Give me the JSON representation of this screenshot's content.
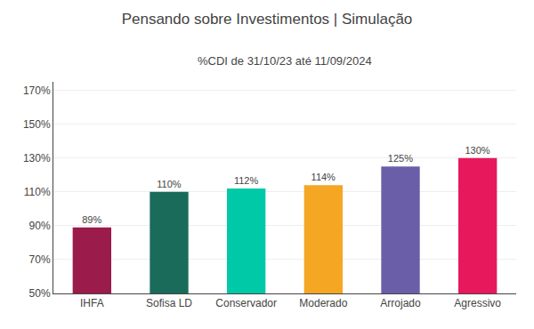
{
  "chart_data": {
    "type": "bar",
    "title": "Pensando sobre Investimentos | Simulação",
    "subtitle": "%CDI de 31/10/23 até 11/09/2024",
    "categories": [
      "IHFA",
      "Sofisa LD",
      "Conservador",
      "Moderado",
      "Arrojado",
      "Agressivo"
    ],
    "values": [
      89,
      110,
      112,
      114,
      125,
      130
    ],
    "value_labels": [
      "89%",
      "110%",
      "112%",
      "114%",
      "125%",
      "130%"
    ],
    "data_labels": true,
    "colors": [
      "#9b1b4b",
      "#1a6b5a",
      "#00c9a7",
      "#f5a623",
      "#6b5ea8",
      "#e8185d"
    ],
    "ylim": [
      50,
      175
    ],
    "yticks": [
      {
        "value": 50,
        "label": "50%"
      },
      {
        "value": 70,
        "label": "70%"
      },
      {
        "value": 90,
        "label": "90%"
      },
      {
        "value": 110,
        "label": "110%"
      },
      {
        "value": 130,
        "label": "130%"
      },
      {
        "value": 150,
        "label": "150%"
      },
      {
        "value": 170,
        "label": "170%"
      }
    ],
    "grid": true
  }
}
